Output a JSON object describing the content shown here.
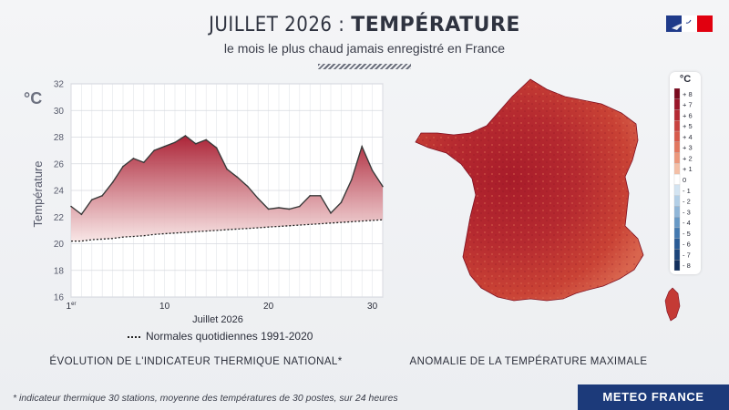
{
  "header": {
    "title_light": "JUILLET 2026 : ",
    "title_bold": "TEMPÉRATURE",
    "subtitle": "le mois le plus chaud jamais enregistré en France"
  },
  "chart_data": {
    "type": "area",
    "ylabel": "Température",
    "unit": "°C",
    "xlabel": "Juillet 2026",
    "ylim": [
      16,
      32
    ],
    "yticks": [
      "32",
      "30",
      "28",
      "26",
      "24",
      "22",
      "20",
      "18",
      "16"
    ],
    "xlim": [
      1,
      31
    ],
    "xticks": [
      {
        "day": 1,
        "label": "1er"
      },
      {
        "day": 10,
        "label": "10"
      },
      {
        "day": 20,
        "label": "20"
      },
      {
        "day": 30,
        "label": "30"
      }
    ],
    "grid": true,
    "series": [
      {
        "x": [
          1,
          2,
          3,
          4,
          5,
          6,
          7,
          8,
          9,
          10,
          11,
          12,
          13,
          14,
          15,
          16,
          17,
          18,
          19,
          20,
          21,
          22,
          23,
          24,
          25,
          26,
          27,
          28,
          29,
          30,
          31
        ],
        "values": [
          22.8,
          22.2,
          23.3,
          23.6,
          24.6,
          25.8,
          26.4,
          26.1,
          27.0,
          27.3,
          27.6,
          28.1,
          27.5,
          27.8,
          27.2,
          25.6,
          25.0,
          24.3,
          23.4,
          22.6,
          22.7,
          22.6,
          22.8,
          23.6,
          23.6,
          22.3,
          23.1,
          24.8,
          27.3,
          25.5,
          24.3
        ]
      },
      {
        "name": "Normales quotidiennes 1991-2020",
        "x": [
          1,
          2,
          3,
          4,
          5,
          6,
          7,
          8,
          9,
          10,
          11,
          12,
          13,
          14,
          15,
          16,
          17,
          18,
          19,
          20,
          21,
          22,
          23,
          24,
          25,
          26,
          27,
          28,
          29,
          30,
          31
        ],
        "values": [
          20.2,
          20.2,
          20.3,
          20.35,
          20.4,
          20.5,
          20.55,
          20.6,
          20.7,
          20.75,
          20.8,
          20.85,
          20.9,
          20.95,
          21.0,
          21.05,
          21.1,
          21.15,
          21.2,
          21.25,
          21.3,
          21.35,
          21.4,
          21.45,
          21.5,
          21.55,
          21.6,
          21.65,
          21.7,
          21.75,
          21.8
        ]
      }
    ],
    "legend_position": "bottom"
  },
  "map_legend": {
    "unit": "°C",
    "levels": [
      "+ 8",
      "+ 7",
      "+ 6",
      "+ 5",
      "+ 4",
      "+ 3",
      "+ 2",
      "+ 1",
      "0",
      "- 1",
      "- 2",
      "- 3",
      "- 4",
      "- 5",
      "- 6",
      "- 7",
      "- 8"
    ],
    "colors": [
      "#7a0a1e",
      "#9a1629",
      "#b52a33",
      "#c9423f",
      "#d75a4b",
      "#e2775f",
      "#ec987c",
      "#f4bfa6",
      "#ffffff",
      "#d3e4f2",
      "#b2cfe7",
      "#8fb6d8",
      "#6799c6",
      "#4379b0",
      "#2a5c96",
      "#1c457b",
      "#122f5c"
    ]
  },
  "captions": {
    "left": "ÉVOLUTION DE L'INDICATEUR THERMIQUE NATIONAL*",
    "right": "ANOMALIE DE LA TEMPÉRATURE MAXIMALE",
    "footnote": "* indicateur thermique 30 stations, moyenne des températures de 30 postes, sur 24 heures"
  },
  "brand": "METEO FRANCE",
  "colors": {
    "area_top": "#a8192d",
    "area_bottom": "#f7e3e3",
    "line": "#3a3a3a",
    "brand_bg": "#1c3a7a",
    "map_dark": "#a81c2a",
    "map_mid": "#c94235",
    "map_light": "#d9654e"
  }
}
